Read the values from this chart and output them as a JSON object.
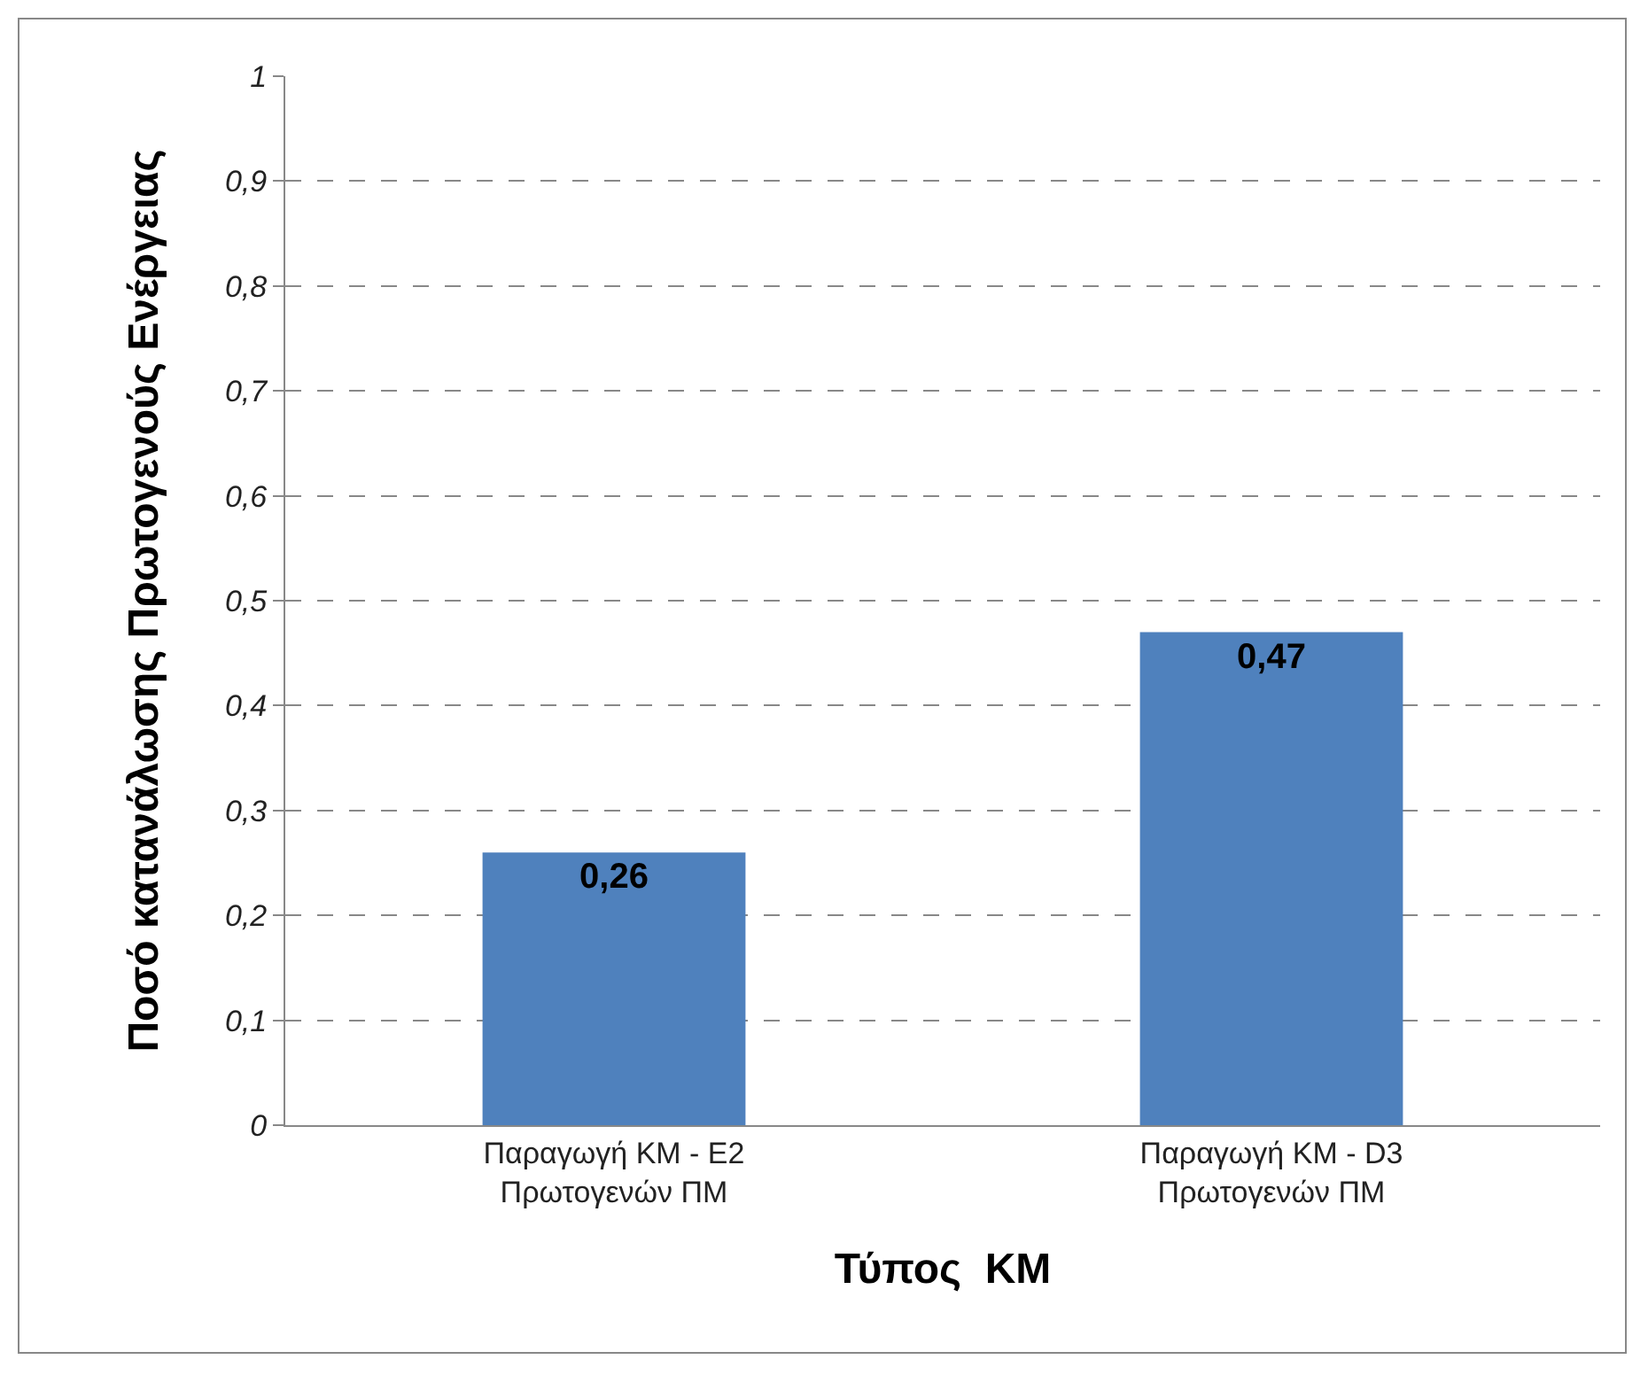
{
  "chart_data": {
    "type": "bar",
    "xlabel": "Τύπος  ΚΜ",
    "ylabel": "Ποσό κατανάλωσης Πρωτογενούς Ενέργειας",
    "categories": [
      "Παραγωγή ΚΜ - Ε2\nΠρωτογενών ΠΜ",
      "Παραγωγή ΚΜ - D3\nΠρωτογενών ΠΜ"
    ],
    "values": [
      0.26,
      0.47
    ],
    "color": "#4f81bd",
    "data_labels": true,
    "value_labels": [
      "0,26",
      "0,47"
    ],
    "ylim": [
      0,
      1
    ],
    "yticks": [
      {
        "value": 0,
        "label": "0"
      },
      {
        "value": 0.1,
        "label": "0,1"
      },
      {
        "value": 0.2,
        "label": "0,2"
      },
      {
        "value": 0.3,
        "label": "0,3"
      },
      {
        "value": 0.4,
        "label": "0,4"
      },
      {
        "value": 0.5,
        "label": "0,5"
      },
      {
        "value": 0.6,
        "label": "0,6"
      },
      {
        "value": 0.7,
        "label": "0,7"
      },
      {
        "value": 0.8,
        "label": "0,8"
      },
      {
        "value": 0.9,
        "label": "0,9"
      },
      {
        "value": 1,
        "label": "1"
      }
    ],
    "grid": "y",
    "legend": false
  }
}
